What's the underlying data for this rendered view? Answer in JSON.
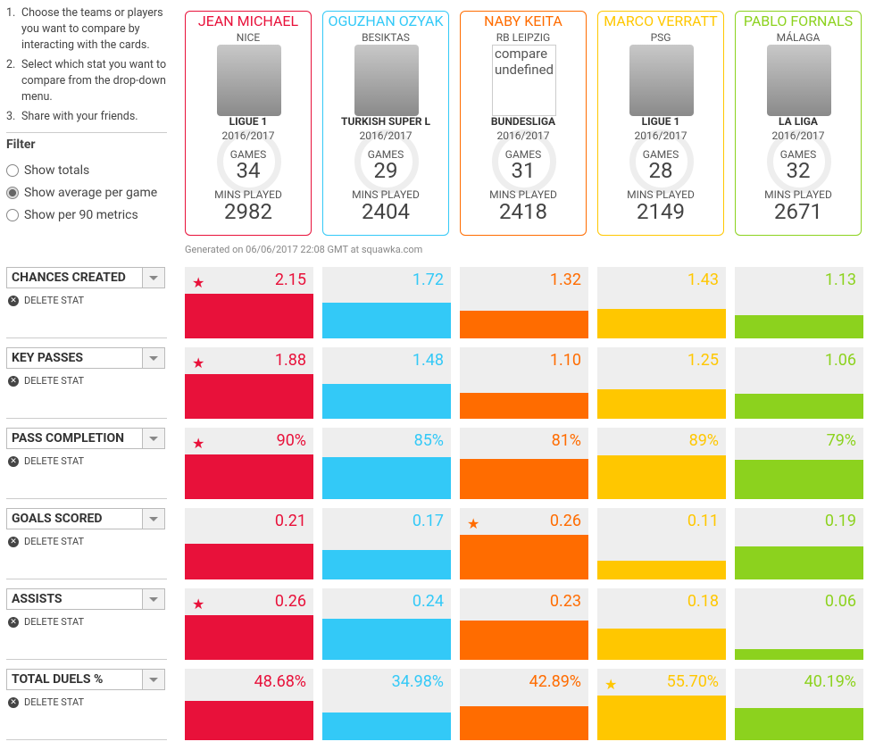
{
  "instructions": [
    "Choose the teams or players you want to compare by interacting with the cards.",
    "Select which stat you want to compare from the drop-down menu.",
    "Share with your friends."
  ],
  "filter": {
    "title": "Filter",
    "options": [
      "Show totals",
      "Show average per game",
      "Show per 90 metrics"
    ],
    "selected": 1
  },
  "players": [
    {
      "name": "JEAN MICHAEL",
      "club": "NICE",
      "league": "LIGUE 1",
      "season": "2016/2017",
      "games_label": "GAMES",
      "games": 34,
      "mins_label": "MINS PLAYED",
      "mins": 2982,
      "color": "#e8113a"
    },
    {
      "name": "OGUZHAN OZYAK",
      "club": "BESIKTAS",
      "league": "TURKISH SUPER L",
      "season": "2016/2017",
      "games_label": "GAMES",
      "games": 29,
      "mins_label": "MINS PLAYED",
      "mins": 2404,
      "color": "#33c9f7"
    },
    {
      "name": "NABY KEITA",
      "club": "RB LEIPZIG",
      "photo_alt": "compare undefined",
      "league": "BUNDESLIGA",
      "season": "2016/2017",
      "games_label": "GAMES",
      "games": 31,
      "mins_label": "MINS PLAYED",
      "mins": 2418,
      "color": "#ff6c00"
    },
    {
      "name": "MARCO VERRATT",
      "club": "PSG",
      "league": "LIGUE 1",
      "season": "2016/2017",
      "games_label": "GAMES",
      "games": 28,
      "mins_label": "MINS PLAYED",
      "mins": 2149,
      "color": "#ffc700"
    },
    {
      "name": "PABLO FORNALS",
      "club": "MÁLAGA",
      "league": "LA LIGA",
      "season": "2016/2017",
      "games_label": "GAMES",
      "games": 32,
      "mins_label": "MINS PLAYED",
      "mins": 2671,
      "color": "#8cd21e"
    }
  ],
  "generated": "Generated on 06/06/2017 22:08 GMT at squawka.com",
  "delete_label": "DELETE STAT",
  "stats": [
    {
      "name": "CHANCES CREATED",
      "values": [
        2.15,
        1.72,
        1.32,
        1.43,
        1.13
      ]
    },
    {
      "name": "KEY PASSES",
      "values": [
        1.88,
        1.48,
        1.1,
        1.25,
        1.06
      ],
      "value_labels": [
        "1.88",
        "1.48",
        "1.10",
        "1.25",
        "1.06"
      ]
    },
    {
      "name": "PASS COMPLETION",
      "values": [
        90,
        85,
        81,
        89,
        79
      ],
      "value_labels": [
        "90%",
        "85%",
        "81%",
        "89%",
        "79%"
      ]
    },
    {
      "name": "GOALS SCORED",
      "values": [
        0.21,
        0.17,
        0.26,
        0.11,
        0.19
      ]
    },
    {
      "name": "ASSISTS",
      "values": [
        0.26,
        0.24,
        0.23,
        0.18,
        0.06
      ]
    },
    {
      "name": "TOTAL DUELS %",
      "values": [
        48.68,
        34.98,
        42.89,
        55.7,
        40.19
      ],
      "value_labels": [
        "48.68%",
        "34.98%",
        "42.89%",
        "55.70%",
        "40.19%"
      ]
    }
  ]
}
